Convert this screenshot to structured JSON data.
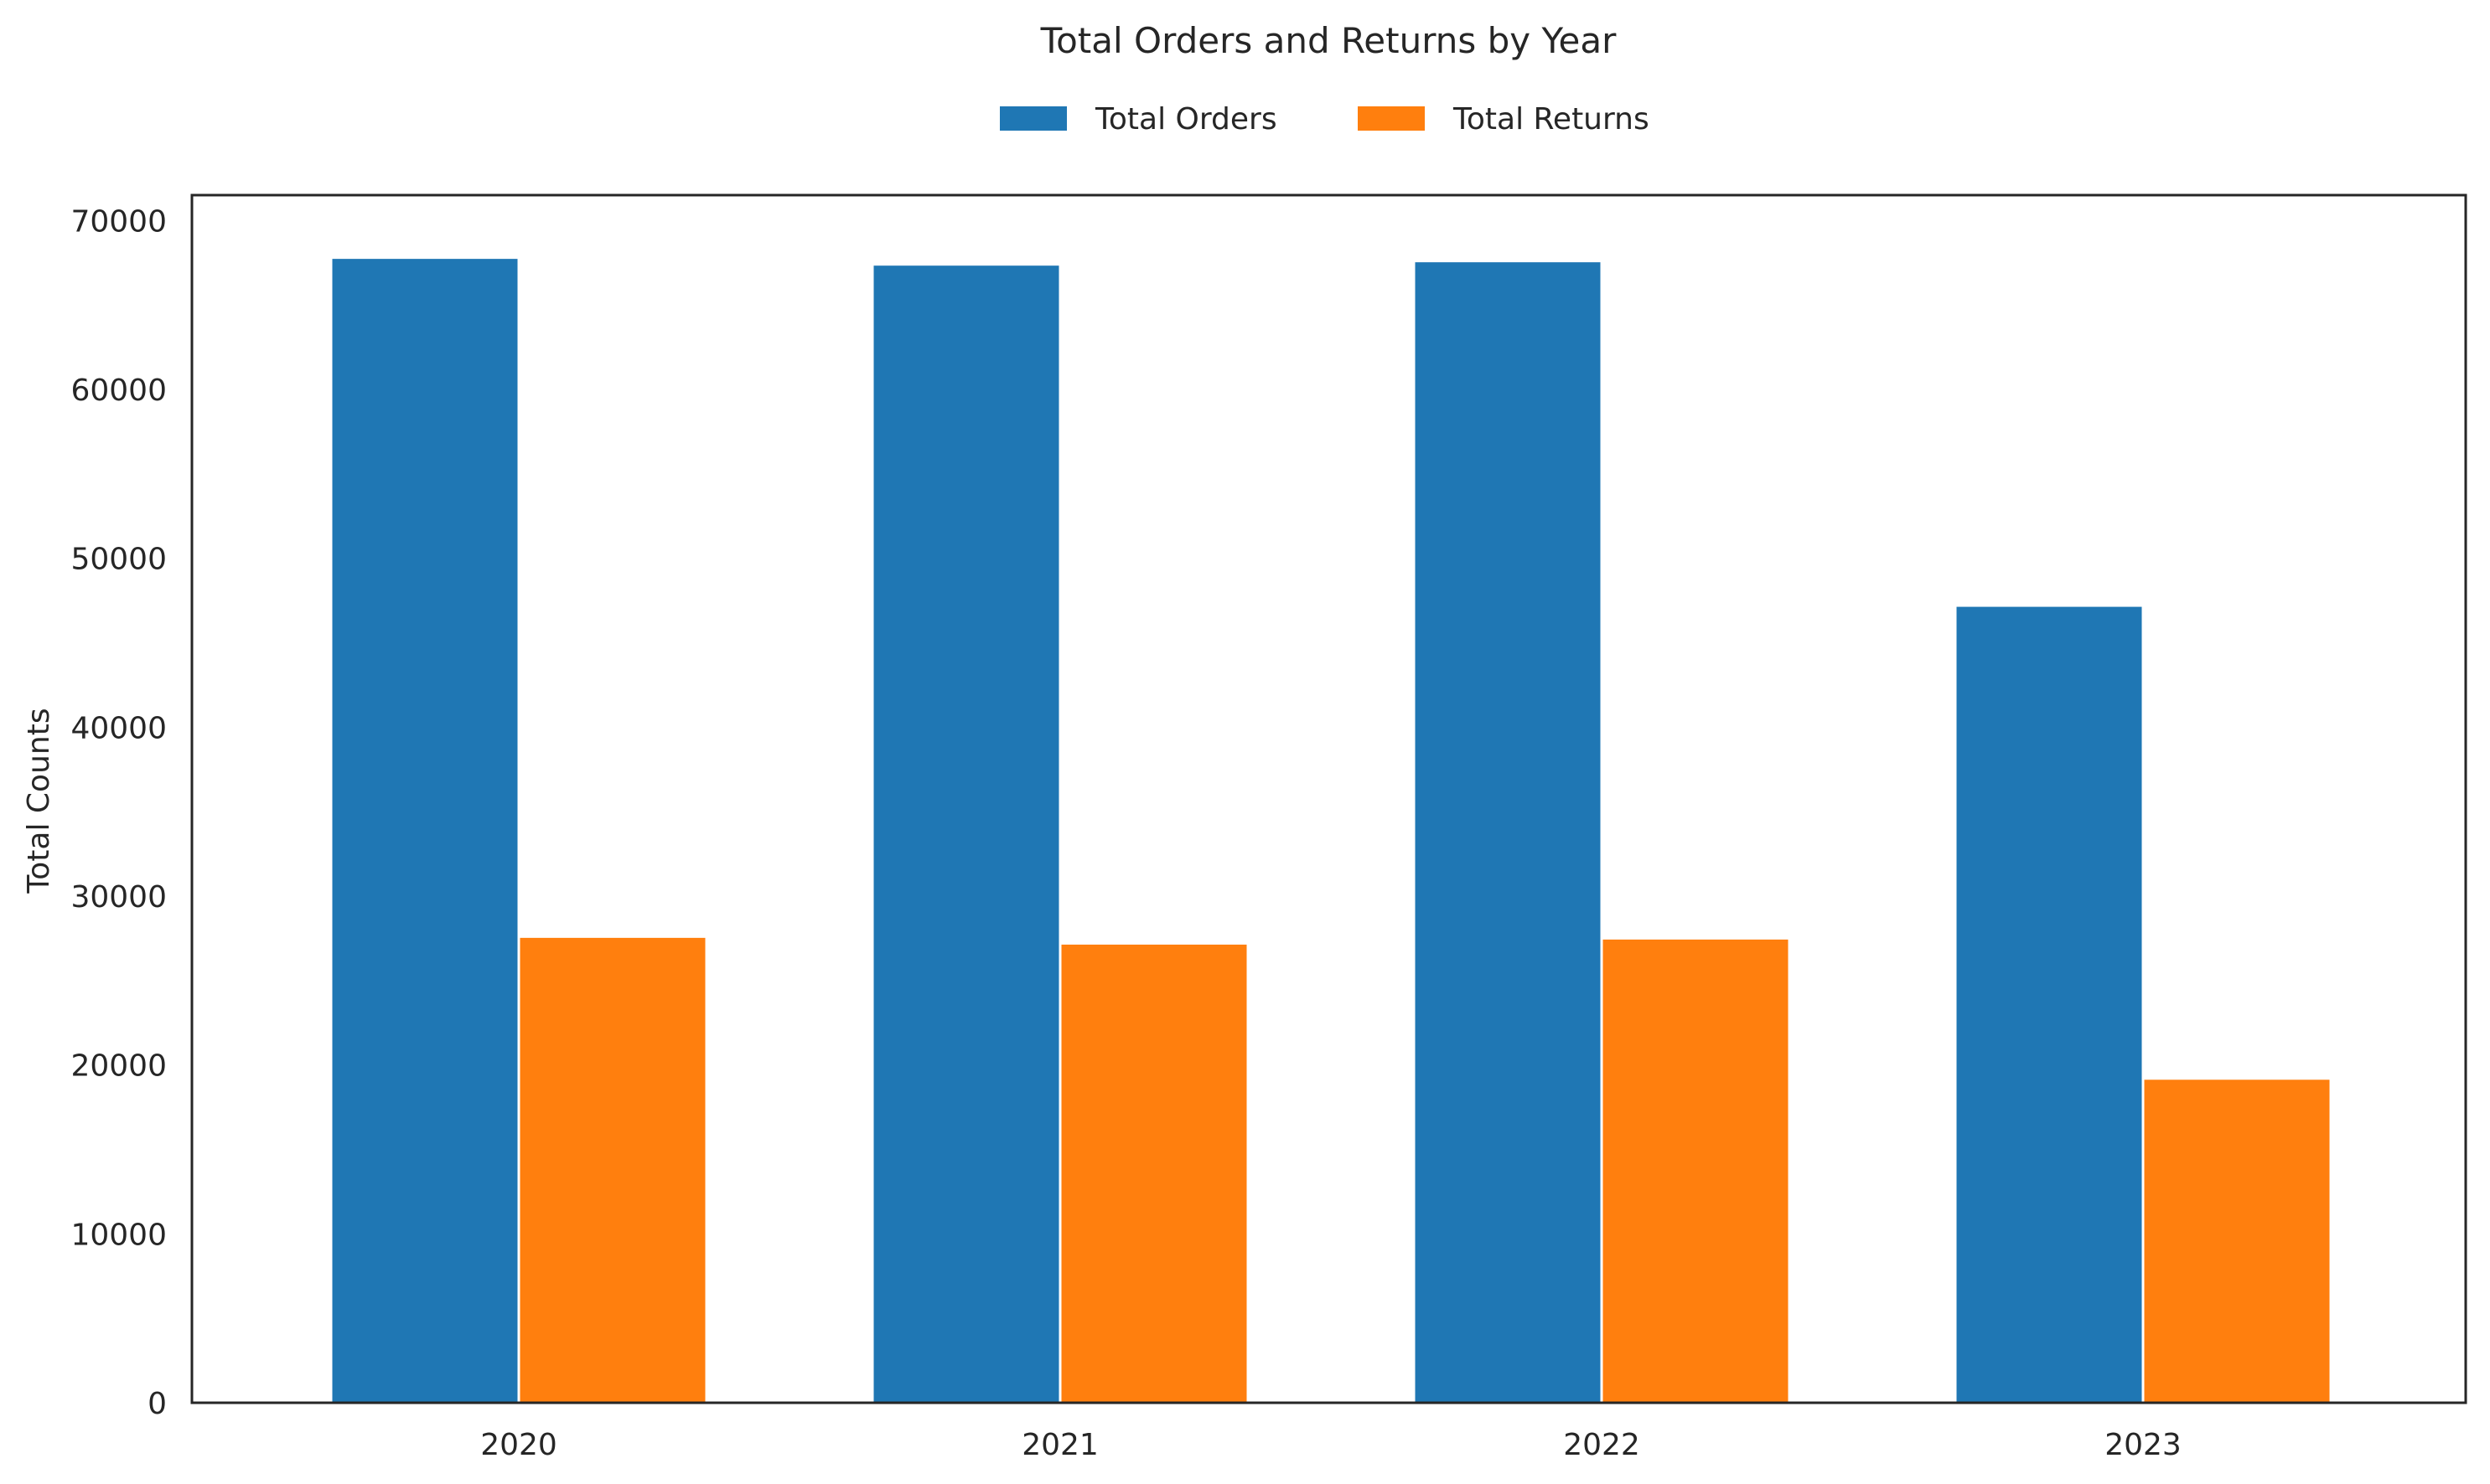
{
  "chart_data": {
    "type": "bar",
    "title": "Total Orders and Returns by Year",
    "xlabel": "",
    "ylabel": "Total Counts",
    "categories": [
      "2020",
      "2021",
      "2022",
      "2023"
    ],
    "series": [
      {
        "name": "Total Orders",
        "color": "#1f77b4",
        "values": [
          67800,
          67400,
          67600,
          47200
        ]
      },
      {
        "name": "Total Returns",
        "color": "#ff7f0e",
        "values": [
          27600,
          27200,
          27500,
          19200
        ]
      }
    ],
    "ylim": [
      0,
      71500
    ],
    "yticks": [
      0,
      10000,
      20000,
      30000,
      40000,
      50000,
      60000,
      70000
    ],
    "grid": false,
    "legend_position": "top-center"
  }
}
